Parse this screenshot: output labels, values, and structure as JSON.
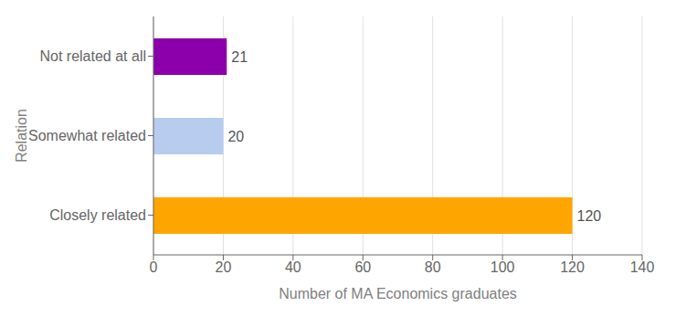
{
  "chart_data": {
    "type": "bar",
    "orientation": "horizontal",
    "categories": [
      "Closely related",
      "Somewhat related",
      "Not related at all"
    ],
    "values": [
      120,
      20,
      21
    ],
    "colors": [
      "#FFA500",
      "#B8CCF0",
      "#8B00AA"
    ],
    "xlabel": "Number of MA Economics graduates",
    "ylabel": "Relation",
    "xlim": [
      0,
      140
    ],
    "xticks": [
      0,
      20,
      40,
      60,
      80,
      100,
      120,
      140
    ],
    "grid": true,
    "data_labels": true
  }
}
